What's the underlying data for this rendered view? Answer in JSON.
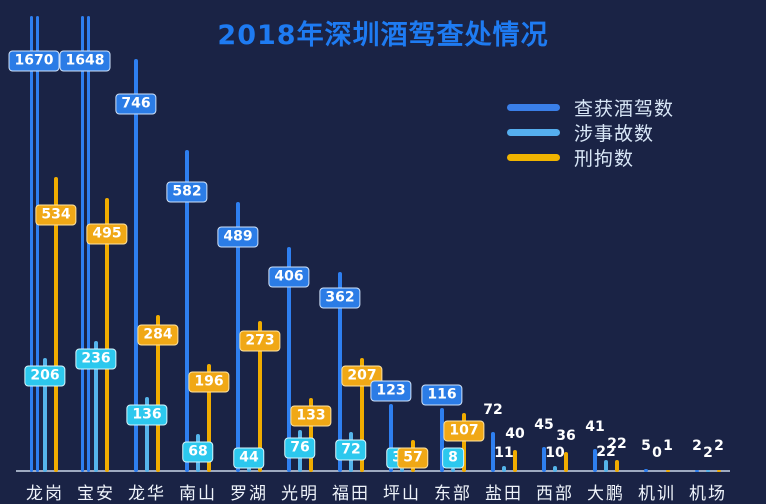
{
  "title": {
    "text": "2018年深圳酒驾查处情况"
  },
  "legend": {
    "items": [
      {
        "label": "查获酒驾数",
        "color": "#3a7fe8"
      },
      {
        "label": "涉事故数",
        "color": "#55aeee"
      },
      {
        "label": "刑拘数",
        "color": "#f0b400"
      }
    ]
  },
  "chart_data": {
    "type": "bar",
    "title": "2018年深圳酒驾查处情况",
    "categories": [
      "龙岗",
      "宝安",
      "龙华",
      "南山",
      "罗湖",
      "光明",
      "福田",
      "坪山",
      "东部",
      "盐田",
      "西部",
      "大鹏",
      "机训",
      "机场"
    ],
    "series": [
      {
        "name": "查获酒驾数",
        "color": "#2e7ff0",
        "pill_color": "#2b7ce6",
        "values": [
          1670,
          1648,
          746,
          582,
          489,
          406,
          362,
          123,
          116,
          72,
          45,
          41,
          5,
          2
        ]
      },
      {
        "name": "涉事故数",
        "color": "#55b4ea",
        "pill_color": "#2cc8ee",
        "values": [
          206,
          236,
          136,
          68,
          44,
          76,
          72,
          34,
          8,
          11,
          10,
          22,
          0,
          2
        ]
      },
      {
        "name": "刑拘数",
        "color": "#f0ac00",
        "pill_color": "#f0a816",
        "values": [
          534,
          495,
          284,
          196,
          273,
          133,
          207,
          57,
          107,
          40,
          36,
          22,
          1,
          2
        ]
      }
    ],
    "xlabel": "",
    "ylabel": "",
    "ylim": [
      0,
      830
    ],
    "y_axis_visible": false,
    "grid": false,
    "legend_position": "top-right",
    "value_labels": "all bars labeled; pill-style badges for 龙岗..东部, plain text for 盐田..机场",
    "clipped_bars": [
      "龙岗",
      "宝安"
    ]
  },
  "colors": {
    "background": "#1a2345",
    "title": "#1e7bf2",
    "axis_line": "#b6c2d6",
    "category_label": "#eef3fa",
    "legend_text": "#d8e6f6",
    "value_label_text": "#ffffff"
  }
}
